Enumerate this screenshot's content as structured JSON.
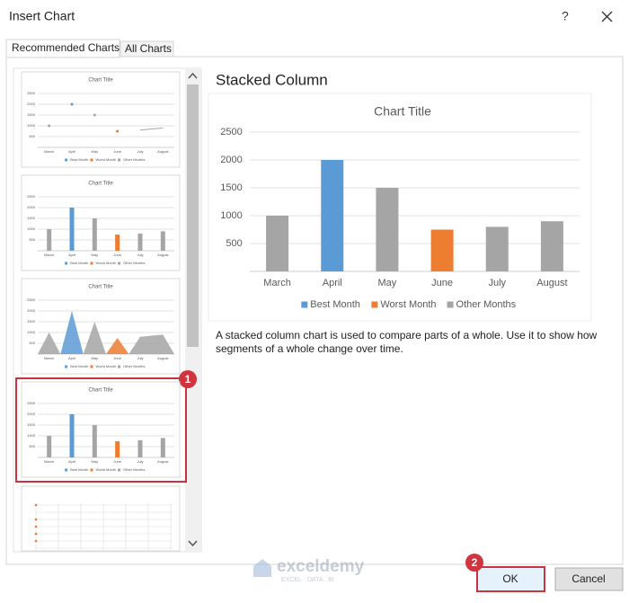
{
  "dialog": {
    "title": "Insert Chart",
    "help": "?",
    "tabs": [
      "Recommended Charts",
      "All Charts"
    ],
    "preview_heading": "Stacked Column",
    "description": "A stacked column chart is used to compare parts of a whole. Use it to show how segments of a whole change over time.",
    "buttons": [
      "OK",
      "Cancel"
    ],
    "callouts": [
      "1",
      "2"
    ],
    "watermark": {
      "name": "exceldemy",
      "tagline": "EXCEL · DATA · BI"
    }
  },
  "chart_data": {
    "type": "bar",
    "stacked": true,
    "title": "Chart Title",
    "categories": [
      "March",
      "April",
      "May",
      "June",
      "July",
      "August"
    ],
    "series": [
      {
        "name": "Best Month",
        "color": "#5b9bd5",
        "values": [
          null,
          2000,
          null,
          null,
          null,
          null
        ]
      },
      {
        "name": "Worst Month",
        "color": "#ed7d31",
        "values": [
          null,
          null,
          null,
          750,
          null,
          null
        ]
      },
      {
        "name": "Other Months",
        "color": "#a5a5a5",
        "values": [
          1000,
          null,
          1500,
          null,
          800,
          900
        ]
      }
    ],
    "ylim": [
      0,
      2500
    ],
    "yticks": [
      500,
      1000,
      1500,
      2000,
      2500
    ],
    "grid": true,
    "legend": "bottom"
  }
}
